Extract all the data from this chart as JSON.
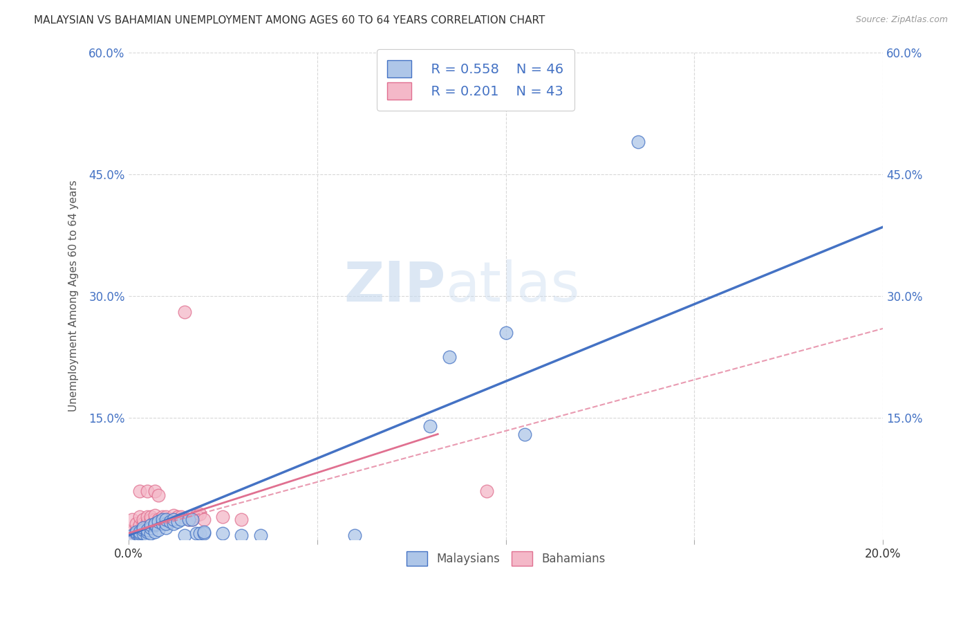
{
  "title": "MALAYSIAN VS BAHAMIAN UNEMPLOYMENT AMONG AGES 60 TO 64 YEARS CORRELATION CHART",
  "source": "Source: ZipAtlas.com",
  "ylabel": "Unemployment Among Ages 60 to 64 years",
  "xlim": [
    0.0,
    0.2
  ],
  "ylim": [
    0.0,
    0.6
  ],
  "xticks": [
    0.0,
    0.05,
    0.1,
    0.15,
    0.2
  ],
  "yticks": [
    0.0,
    0.15,
    0.3,
    0.45,
    0.6
  ],
  "watermark_part1": "ZIP",
  "watermark_part2": "atlas",
  "legend_r1": "R = 0.558",
  "legend_n1": "N = 46",
  "legend_r2": "R = 0.201",
  "legend_n2": "N = 43",
  "malaysian_color": "#aec6e8",
  "bahamian_color": "#f4b8c8",
  "malaysian_line_color": "#4472c4",
  "bahamian_line_color": "#e07090",
  "malaysian_scatter": [
    [
      0.001,
      0.005
    ],
    [
      0.002,
      0.008
    ],
    [
      0.002,
      0.01
    ],
    [
      0.003,
      0.005
    ],
    [
      0.003,
      0.008
    ],
    [
      0.003,
      0.01
    ],
    [
      0.004,
      0.008
    ],
    [
      0.004,
      0.012
    ],
    [
      0.004,
      0.015
    ],
    [
      0.005,
      0.005
    ],
    [
      0.005,
      0.01
    ],
    [
      0.005,
      0.012
    ],
    [
      0.006,
      0.008
    ],
    [
      0.006,
      0.015
    ],
    [
      0.006,
      0.018
    ],
    [
      0.007,
      0.01
    ],
    [
      0.007,
      0.018
    ],
    [
      0.007,
      0.02
    ],
    [
      0.008,
      0.012
    ],
    [
      0.008,
      0.022
    ],
    [
      0.009,
      0.02
    ],
    [
      0.009,
      0.025
    ],
    [
      0.01,
      0.015
    ],
    [
      0.01,
      0.02
    ],
    [
      0.01,
      0.025
    ],
    [
      0.011,
      0.022
    ],
    [
      0.012,
      0.02
    ],
    [
      0.012,
      0.025
    ],
    [
      0.013,
      0.022
    ],
    [
      0.014,
      0.025
    ],
    [
      0.015,
      0.005
    ],
    [
      0.016,
      0.025
    ],
    [
      0.017,
      0.025
    ],
    [
      0.018,
      0.008
    ],
    [
      0.019,
      0.008
    ],
    [
      0.02,
      0.008
    ],
    [
      0.02,
      0.01
    ],
    [
      0.025,
      0.008
    ],
    [
      0.03,
      0.005
    ],
    [
      0.035,
      0.005
    ],
    [
      0.06,
      0.005
    ],
    [
      0.08,
      0.14
    ],
    [
      0.085,
      0.225
    ],
    [
      0.1,
      0.255
    ],
    [
      0.105,
      0.13
    ],
    [
      0.135,
      0.49
    ]
  ],
  "bahamian_scatter": [
    [
      0.001,
      0.01
    ],
    [
      0.001,
      0.025
    ],
    [
      0.002,
      0.008
    ],
    [
      0.002,
      0.012
    ],
    [
      0.002,
      0.02
    ],
    [
      0.003,
      0.01
    ],
    [
      0.003,
      0.018
    ],
    [
      0.003,
      0.028
    ],
    [
      0.003,
      0.06
    ],
    [
      0.004,
      0.015
    ],
    [
      0.004,
      0.02
    ],
    [
      0.004,
      0.025
    ],
    [
      0.005,
      0.018
    ],
    [
      0.005,
      0.022
    ],
    [
      0.005,
      0.028
    ],
    [
      0.005,
      0.06
    ],
    [
      0.006,
      0.018
    ],
    [
      0.006,
      0.025
    ],
    [
      0.006,
      0.028
    ],
    [
      0.007,
      0.02
    ],
    [
      0.007,
      0.025
    ],
    [
      0.007,
      0.03
    ],
    [
      0.007,
      0.06
    ],
    [
      0.008,
      0.02
    ],
    [
      0.008,
      0.025
    ],
    [
      0.008,
      0.055
    ],
    [
      0.009,
      0.022
    ],
    [
      0.009,
      0.028
    ],
    [
      0.01,
      0.022
    ],
    [
      0.01,
      0.028
    ],
    [
      0.011,
      0.025
    ],
    [
      0.012,
      0.03
    ],
    [
      0.013,
      0.028
    ],
    [
      0.014,
      0.028
    ],
    [
      0.015,
      0.28
    ],
    [
      0.016,
      0.025
    ],
    [
      0.017,
      0.025
    ],
    [
      0.018,
      0.03
    ],
    [
      0.019,
      0.032
    ],
    [
      0.02,
      0.025
    ],
    [
      0.025,
      0.028
    ],
    [
      0.03,
      0.025
    ],
    [
      0.095,
      0.06
    ]
  ],
  "malaysian_line": [
    [
      0.0,
      0.005
    ],
    [
      0.2,
      0.385
    ]
  ],
  "bahamian_line_solid": [
    [
      0.0,
      0.008
    ],
    [
      0.082,
      0.13
    ]
  ],
  "bahamian_line_dashed": [
    [
      0.0,
      0.008
    ],
    [
      0.2,
      0.26
    ]
  ],
  "background_color": "#ffffff",
  "grid_color": "#d8d8d8"
}
